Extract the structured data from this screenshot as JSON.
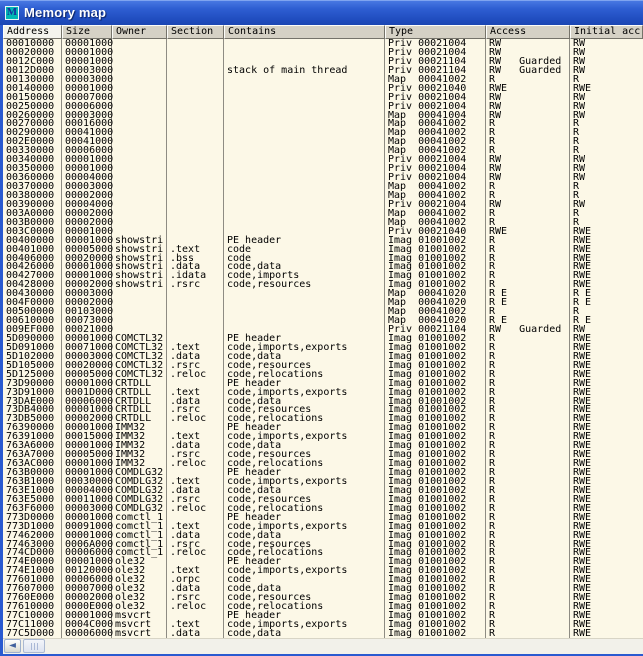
{
  "titlebar": {
    "icon_letter": "M",
    "title": "Memory map"
  },
  "columns": [
    {
      "id": "address",
      "label": "Address",
      "sorted": true
    },
    {
      "id": "size",
      "label": "Size",
      "sorted": false
    },
    {
      "id": "owner",
      "label": "Owner",
      "sorted": false
    },
    {
      "id": "section",
      "label": "Section",
      "sorted": false
    },
    {
      "id": "contains",
      "label": "Contains",
      "sorted": false
    },
    {
      "id": "type",
      "label": "Type",
      "sorted": false
    },
    {
      "id": "access",
      "label": "Access",
      "sorted": false
    },
    {
      "id": "initial_access",
      "label": "Initial acc",
      "sorted": false
    }
  ],
  "rows": [
    [
      "00010000",
      "00001000",
      "",
      "",
      "",
      "Priv 00021004",
      "RW",
      "RW"
    ],
    [
      "00020000",
      "00001000",
      "",
      "",
      "",
      "Priv 00021004",
      "RW",
      "RW"
    ],
    [
      "0012C000",
      "00001000",
      "",
      "",
      "",
      "Priv 00021104",
      "RW   Guarded",
      "RW"
    ],
    [
      "0012D000",
      "00003000",
      "",
      "",
      "stack of main thread",
      "Priv 00021104",
      "RW   Guarded",
      "RW"
    ],
    [
      "00130000",
      "00003000",
      "",
      "",
      "",
      "Map  00041002",
      "R",
      "R"
    ],
    [
      "00140000",
      "00001000",
      "",
      "",
      "",
      "Priv 00021040",
      "RWE",
      "RWE"
    ],
    [
      "00150000",
      "00007000",
      "",
      "",
      "",
      "Priv 00021004",
      "RW",
      "RW"
    ],
    [
      "00250000",
      "00006000",
      "",
      "",
      "",
      "Priv 00021004",
      "RW",
      "RW"
    ],
    [
      "00260000",
      "00003000",
      "",
      "",
      "",
      "Map  00041004",
      "RW",
      "RW"
    ],
    [
      "00270000",
      "00016000",
      "",
      "",
      "",
      "Map  00041002",
      "R",
      "R"
    ],
    [
      "00290000",
      "00041000",
      "",
      "",
      "",
      "Map  00041002",
      "R",
      "R"
    ],
    [
      "002E0000",
      "00041000",
      "",
      "",
      "",
      "Map  00041002",
      "R",
      "R"
    ],
    [
      "00330000",
      "00006000",
      "",
      "",
      "",
      "Map  00041002",
      "R",
      "R"
    ],
    [
      "00340000",
      "00001000",
      "",
      "",
      "",
      "Priv 00021004",
      "RW",
      "RW"
    ],
    [
      "00350000",
      "00001000",
      "",
      "",
      "",
      "Priv 00021004",
      "RW",
      "RW"
    ],
    [
      "00360000",
      "00004000",
      "",
      "",
      "",
      "Priv 00021004",
      "RW",
      "RW"
    ],
    [
      "00370000",
      "00003000",
      "",
      "",
      "",
      "Map  00041002",
      "R",
      "R"
    ],
    [
      "00380000",
      "00002000",
      "",
      "",
      "",
      "Map  00041002",
      "R",
      "R"
    ],
    [
      "00390000",
      "00004000",
      "",
      "",
      "",
      "Priv 00021004",
      "RW",
      "RW"
    ],
    [
      "003A0000",
      "00002000",
      "",
      "",
      "",
      "Map  00041002",
      "R",
      "R"
    ],
    [
      "003B0000",
      "00002000",
      "",
      "",
      "",
      "Map  00041002",
      "R",
      "R"
    ],
    [
      "003C0000",
      "00001000",
      "",
      "",
      "",
      "Priv 00021040",
      "RWE",
      "RWE"
    ],
    [
      "00400000",
      "00001000",
      "showstri",
      "",
      "PE header",
      "Imag 01001002",
      "R",
      "RWE"
    ],
    [
      "00401000",
      "00005000",
      "showstri",
      ".text",
      "code",
      "Imag 01001002",
      "R",
      "RWE"
    ],
    [
      "00406000",
      "00020000",
      "showstri",
      ".bss",
      "code",
      "Imag 01001002",
      "R",
      "RWE"
    ],
    [
      "00426000",
      "00001000",
      "showstri",
      ".data",
      "code,data",
      "Imag 01001002",
      "R",
      "RWE"
    ],
    [
      "00427000",
      "00001000",
      "showstri",
      ".idata",
      "code,imports",
      "Imag 01001002",
      "R",
      "RWE"
    ],
    [
      "00428000",
      "00002000",
      "showstri",
      ".rsrc",
      "code,resources",
      "Imag 01001002",
      "R",
      "RWE"
    ],
    [
      "00430000",
      "00003000",
      "",
      "",
      "",
      "Map  00041020",
      "R E",
      "R E"
    ],
    [
      "004F0000",
      "00002000",
      "",
      "",
      "",
      "Map  00041020",
      "R E",
      "R E"
    ],
    [
      "00500000",
      "00103000",
      "",
      "",
      "",
      "Map  00041002",
      "R",
      "R"
    ],
    [
      "00610000",
      "00073000",
      "",
      "",
      "",
      "Map  00041020",
      "R E",
      "R E"
    ],
    [
      "009EF000",
      "00021000",
      "",
      "",
      "",
      "Priv 00021104",
      "RW   Guarded",
      "RW"
    ],
    [
      "5D090000",
      "00001000",
      "COMCTL32",
      "",
      "PE header",
      "Imag 01001002",
      "R",
      "RWE"
    ],
    [
      "5D091000",
      "00071000",
      "COMCTL32",
      ".text",
      "code,imports,exports",
      "Imag 01001002",
      "R",
      "RWE"
    ],
    [
      "5D102000",
      "00003000",
      "COMCTL32",
      ".data",
      "code,data",
      "Imag 01001002",
      "R",
      "RWE"
    ],
    [
      "5D105000",
      "00020000",
      "COMCTL32",
      ".rsrc",
      "code,resources",
      "Imag 01001002",
      "R",
      "RWE"
    ],
    [
      "5D125000",
      "00005000",
      "COMCTL32",
      ".reloc",
      "code,relocations",
      "Imag 01001002",
      "R",
      "RWE"
    ],
    [
      "73D90000",
      "00001000",
      "CRTDLL",
      "",
      "PE header",
      "Imag 01001002",
      "R",
      "RWE"
    ],
    [
      "73D91000",
      "0001D000",
      "CRTDLL",
      ".text",
      "code,imports,exports",
      "Imag 01001002",
      "R",
      "RWE"
    ],
    [
      "73DAE000",
      "00006000",
      "CRTDLL",
      ".data",
      "code,data",
      "Imag 01001002",
      "R",
      "RWE"
    ],
    [
      "73DB4000",
      "00001000",
      "CRTDLL",
      ".rsrc",
      "code,resources",
      "Imag 01001002",
      "R",
      "RWE"
    ],
    [
      "73DB5000",
      "00002000",
      "CRTDLL",
      ".reloc",
      "code,relocations",
      "Imag 01001002",
      "R",
      "RWE"
    ],
    [
      "76390000",
      "00001000",
      "IMM32",
      "",
      "PE header",
      "Imag 01001002",
      "R",
      "RWE"
    ],
    [
      "76391000",
      "00015000",
      "IMM32",
      ".text",
      "code,imports,exports",
      "Imag 01001002",
      "R",
      "RWE"
    ],
    [
      "763A6000",
      "00001000",
      "IMM32",
      ".data",
      "code,data",
      "Imag 01001002",
      "R",
      "RWE"
    ],
    [
      "763A7000",
      "00005000",
      "IMM32",
      ".rsrc",
      "code,resources",
      "Imag 01001002",
      "R",
      "RWE"
    ],
    [
      "763AC000",
      "00001000",
      "IMM32",
      ".reloc",
      "code,relocations",
      "Imag 01001002",
      "R",
      "RWE"
    ],
    [
      "763B0000",
      "00001000",
      "COMDLG32",
      "",
      "PE header",
      "Imag 01001002",
      "R",
      "RWE"
    ],
    [
      "763B1000",
      "00030000",
      "COMDLG32",
      ".text",
      "code,imports,exports",
      "Imag 01001002",
      "R",
      "RWE"
    ],
    [
      "763E1000",
      "00004000",
      "COMDLG32",
      ".data",
      "code,data",
      "Imag 01001002",
      "R",
      "RWE"
    ],
    [
      "763E5000",
      "00011000",
      "COMDLG32",
      ".rsrc",
      "code,resources",
      "Imag 01001002",
      "R",
      "RWE"
    ],
    [
      "763F6000",
      "00003000",
      "COMDLG32",
      ".reloc",
      "code,relocations",
      "Imag 01001002",
      "R",
      "RWE"
    ],
    [
      "773D0000",
      "00001000",
      "comctl_1",
      "",
      "PE header",
      "Imag 01001002",
      "R",
      "RWE"
    ],
    [
      "773D1000",
      "00091000",
      "comctl_1",
      ".text",
      "code,imports,exports",
      "Imag 01001002",
      "R",
      "RWE"
    ],
    [
      "77462000",
      "00001000",
      "comctl_1",
      ".data",
      "code,data",
      "Imag 01001002",
      "R",
      "RWE"
    ],
    [
      "77463000",
      "0006A000",
      "comctl_1",
      ".rsrc",
      "code,resources",
      "Imag 01001002",
      "R",
      "RWE"
    ],
    [
      "774CD000",
      "00006000",
      "comctl_1",
      ".reloc",
      "code,relocations",
      "Imag 01001002",
      "R",
      "RWE"
    ],
    [
      "774E0000",
      "00001000",
      "ole32",
      "",
      "PE header",
      "Imag 01001002",
      "R",
      "RWE"
    ],
    [
      "774E1000",
      "00120000",
      "ole32",
      ".text",
      "code,imports,exports",
      "Imag 01001002",
      "R",
      "RWE"
    ],
    [
      "77601000",
      "00006000",
      "ole32",
      ".orpc",
      "code",
      "Imag 01001002",
      "R",
      "RWE"
    ],
    [
      "77607000",
      "00007000",
      "ole32",
      ".data",
      "code,data",
      "Imag 01001002",
      "R",
      "RWE"
    ],
    [
      "7760E000",
      "00002000",
      "ole32",
      ".rsrc",
      "code,resources",
      "Imag 01001002",
      "R",
      "RWE"
    ],
    [
      "77610000",
      "0000E000",
      "ole32",
      ".reloc",
      "code,relocations",
      "Imag 01001002",
      "R",
      "RWE"
    ],
    [
      "77C10000",
      "00001000",
      "msvcrt",
      "",
      "PE header",
      "Imag 01001002",
      "R",
      "RWE"
    ],
    [
      "77C11000",
      "0004C000",
      "msvcrt",
      ".text",
      "code,imports,exports",
      "Imag 01001002",
      "R",
      "RWE"
    ],
    [
      "77C5D000",
      "00006000",
      "msvcrt",
      ".data",
      "code,data",
      "Imag 01001002",
      "R",
      "RWE"
    ]
  ],
  "colors": {
    "titlebar_blue": "#2E5ED2",
    "frame_blue": "#2A5AD0",
    "table_background": "#FCF8E7",
    "header_background": "#D5D1C5",
    "sorted_header_background": "#F4F3ED",
    "text": "#000000",
    "icon_teal": "#00B8B4"
  }
}
